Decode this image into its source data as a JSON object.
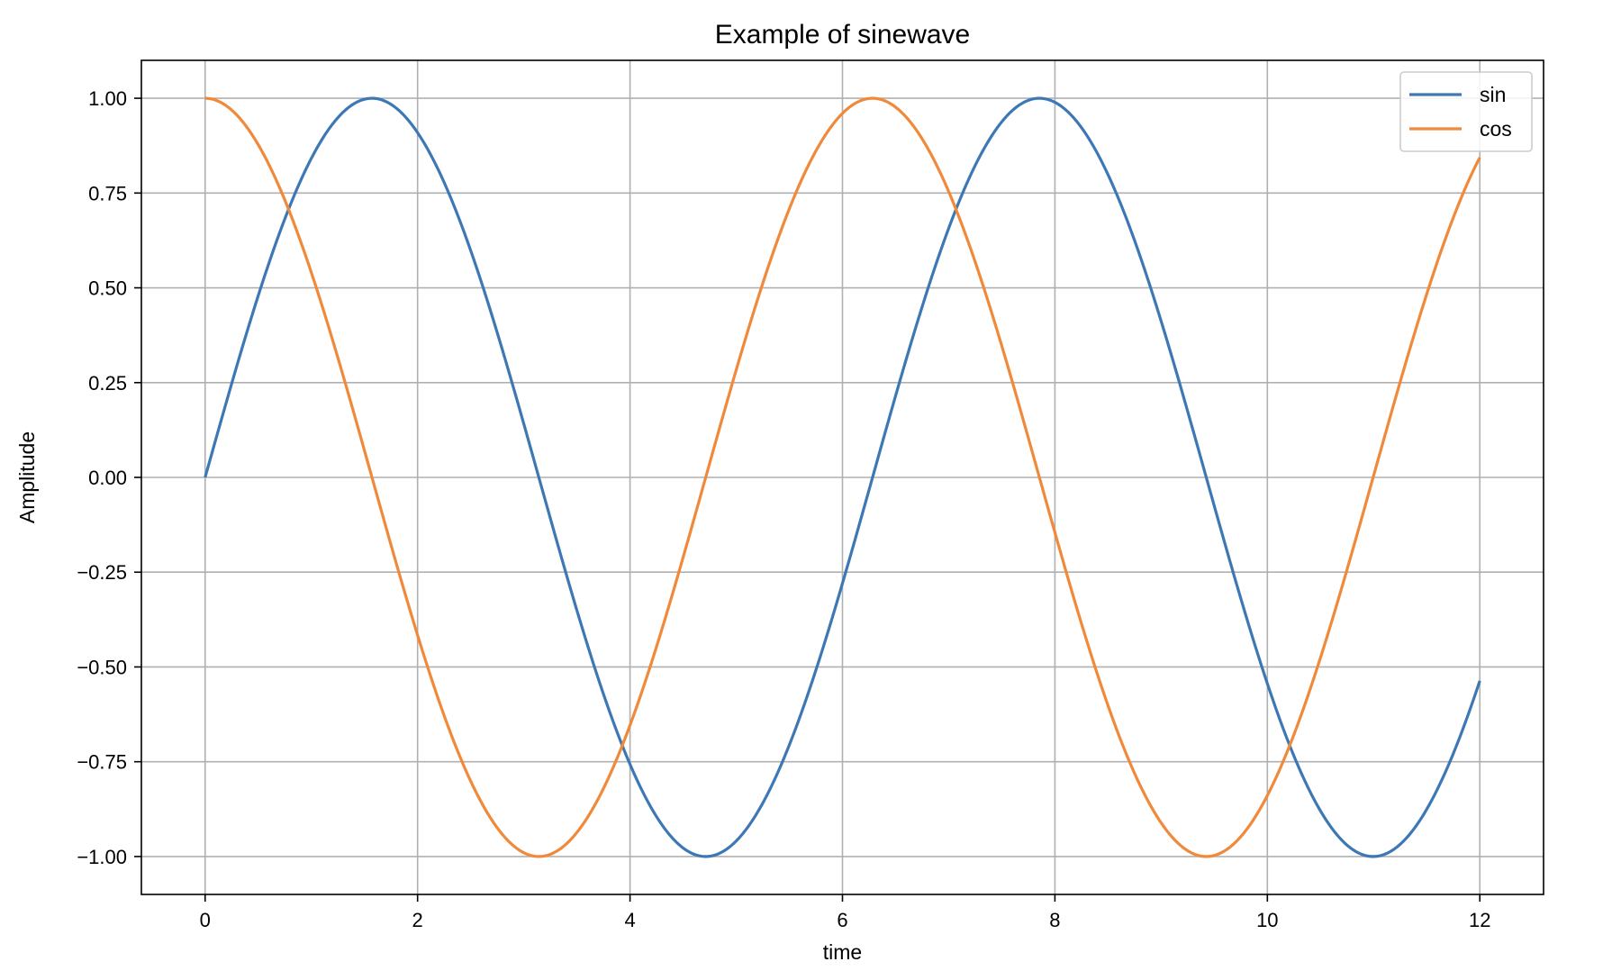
{
  "chart_data": {
    "type": "line",
    "title": "Example of sinewave",
    "xlabel": "time",
    "ylabel": "Amplitude",
    "xlim": [
      -0.6,
      12.6
    ],
    "ylim": [
      -1.1,
      1.1
    ],
    "x_ticks": [
      0,
      2,
      4,
      6,
      8,
      10,
      12
    ],
    "x_tick_labels": [
      "0",
      "2",
      "4",
      "6",
      "8",
      "10",
      "12"
    ],
    "y_ticks": [
      1.0,
      0.75,
      0.5,
      0.25,
      0.0,
      -0.25,
      -0.5,
      -0.75,
      -1.0
    ],
    "y_tick_labels": [
      "1.00",
      "0.75",
      "0.50",
      "0.25",
      "0.00",
      "−0.25",
      "−0.50",
      "−0.75",
      "−1.00"
    ],
    "grid": true,
    "legend_position": "top-right",
    "x_range": [
      0,
      12
    ],
    "series": [
      {
        "name": "sin",
        "function": "sin",
        "color": "#3d78b5",
        "values_at_integers": [
          0.0,
          0.841,
          0.909,
          0.141,
          -0.757,
          -0.959,
          -0.279,
          0.657,
          0.989,
          0.412,
          -0.544,
          -1.0,
          -0.537
        ]
      },
      {
        "name": "cos",
        "function": "cos",
        "color": "#f0893a",
        "values_at_integers": [
          1.0,
          0.54,
          -0.416,
          -0.99,
          -0.654,
          0.284,
          0.96,
          0.754,
          -0.146,
          -0.911,
          -0.839,
          0.004,
          0.844
        ]
      }
    ]
  }
}
